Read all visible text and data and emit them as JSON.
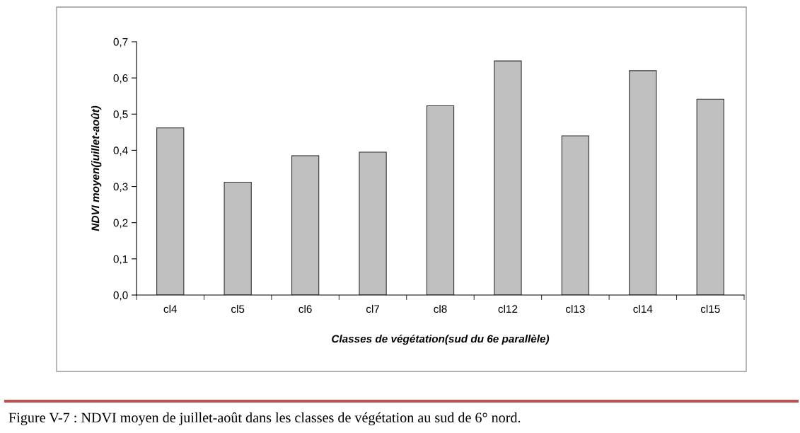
{
  "chart_data": {
    "type": "bar",
    "categories": [
      "cl4",
      "cl5",
      "cl6",
      "cl7",
      "cl8",
      "cl12",
      "cl13",
      "cl14",
      "cl15"
    ],
    "values": [
      0.462,
      0.312,
      0.385,
      0.395,
      0.523,
      0.647,
      0.44,
      0.62,
      0.541
    ],
    "color": "#c0c0c0",
    "xlabel": "Classes de végétation(sud du 6e parallèle)",
    "ylabel": "NDVI moyen(juillet-août)",
    "ylim": [
      0,
      0.7
    ],
    "yticks": [
      {
        "value": 0,
        "label": "0,0"
      },
      {
        "value": 0.1,
        "label": "0,1"
      },
      {
        "value": 0.2,
        "label": "0,2"
      },
      {
        "value": 0.3,
        "label": "0,3"
      },
      {
        "value": 0.4,
        "label": "0,4"
      },
      {
        "value": 0.5,
        "label": "0,5"
      },
      {
        "value": 0.6,
        "label": "0,6"
      },
      {
        "value": 0.7,
        "label": "0,7"
      }
    ],
    "grid": false,
    "legend": false,
    "annotations": [
      "Figure V-7 : NDVI moyen de juillet-août dans les classes de végétation au sud de 6° nord."
    ]
  }
}
